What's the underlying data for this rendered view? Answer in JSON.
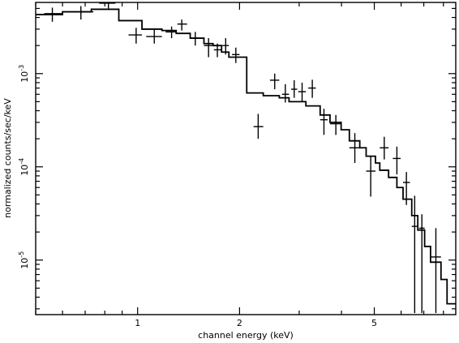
{
  "chart_data": {
    "type": "scatter",
    "title": "",
    "xlabel": "channel energy (keV)",
    "ylabel": "normalized counts/sec/keV",
    "x_scale": "log",
    "y_scale": "log",
    "xlim": [
      0.5,
      8.7
    ],
    "ylim": [
      2.6e-06,
      0.0058
    ],
    "grid": false,
    "legend": "none",
    "x_ticks": [
      {
        "value": 1,
        "label": "1"
      },
      {
        "value": 2,
        "label": "2"
      },
      {
        "value": 5,
        "label": "5"
      }
    ],
    "y_ticks": [
      {
        "value": 0.001,
        "base": "10",
        "exp": "-3"
      },
      {
        "value": 0.0001,
        "base": "10",
        "exp": "-4"
      },
      {
        "value": 1e-05,
        "base": "10",
        "exp": "-5"
      }
    ],
    "series": [
      {
        "kind": "data-with-errors",
        "points": [
          {
            "x": 0.56,
            "xerr": [
              0.53,
              0.6
            ],
            "y": 0.0044,
            "ylo": 0.0036,
            "yhi": 0.0051
          },
          {
            "x": 0.68,
            "xerr": [
              0.63,
              0.74
            ],
            "y": 0.0046,
            "ylo": 0.0038,
            "yhi": 0.0053
          },
          {
            "x": 0.82,
            "xerr": [
              0.77,
              0.86
            ],
            "y": 0.0057,
            "ylo": 0.005,
            "yhi": 0.0058
          },
          {
            "x": 0.99,
            "xerr": [
              0.94,
              1.03
            ],
            "y": 0.0026,
            "ylo": 0.0021,
            "yhi": 0.0031
          },
          {
            "x": 1.12,
            "xerr": [
              1.06,
              1.18
            ],
            "y": 0.0025,
            "ylo": 0.0021,
            "yhi": 0.003
          },
          {
            "x": 1.26,
            "xerr": [
              1.21,
              1.3
            ],
            "y": 0.0028,
            "ylo": 0.0024,
            "yhi": 0.0032
          },
          {
            "x": 1.35,
            "xerr": [
              1.31,
              1.4
            ],
            "y": 0.0034,
            "ylo": 0.0029,
            "yhi": 0.0038
          },
          {
            "x": 1.48,
            "xerr": [
              1.43,
              1.53
            ],
            "y": 0.0024,
            "ylo": 0.002,
            "yhi": 0.0028
          },
          {
            "x": 1.62,
            "xerr": [
              1.57,
              1.67
            ],
            "y": 0.002,
            "ylo": 0.0015,
            "yhi": 0.0024
          },
          {
            "x": 1.72,
            "xerr": [
              1.68,
              1.77
            ],
            "y": 0.0018,
            "ylo": 0.0015,
            "yhi": 0.0021
          },
          {
            "x": 1.82,
            "xerr": [
              1.78,
              1.86
            ],
            "y": 0.002,
            "ylo": 0.0016,
            "yhi": 0.0024
          },
          {
            "x": 1.95,
            "xerr": [
              1.9,
              2.0
            ],
            "y": 0.0016,
            "ylo": 0.0013,
            "yhi": 0.0019
          },
          {
            "x": 2.27,
            "xerr": [
              2.2,
              2.35
            ],
            "y": 0.00027,
            "ylo": 0.0002,
            "yhi": 0.00037
          },
          {
            "x": 2.54,
            "xerr": [
              2.46,
              2.62
            ],
            "y": 0.00085,
            "ylo": 0.00068,
            "yhi": 0.001
          },
          {
            "x": 2.73,
            "xerr": [
              2.67,
              2.8
            ],
            "y": 0.0006,
            "ylo": 0.00049,
            "yhi": 0.00077
          },
          {
            "x": 2.9,
            "xerr": [
              2.84,
              2.96
            ],
            "y": 0.00068,
            "ylo": 0.00055,
            "yhi": 0.00085
          },
          {
            "x": 3.06,
            "xerr": [
              2.98,
              3.14
            ],
            "y": 0.00064,
            "ylo": 0.0005,
            "yhi": 0.0008
          },
          {
            "x": 3.28,
            "xerr": [
              3.19,
              3.36
            ],
            "y": 0.0007,
            "ylo": 0.00055,
            "yhi": 0.00086
          },
          {
            "x": 3.55,
            "xerr": [
              3.46,
              3.64
            ],
            "y": 0.00032,
            "ylo": 0.00022,
            "yhi": 0.00042
          },
          {
            "x": 3.85,
            "xerr": [
              3.7,
              3.99
            ],
            "y": 0.00029,
            "ylo": 0.00022,
            "yhi": 0.00036
          },
          {
            "x": 4.38,
            "xerr": [
              4.22,
              4.53
            ],
            "y": 0.00016,
            "ylo": 0.00011,
            "yhi": 0.00023
          },
          {
            "x": 4.88,
            "xerr": [
              4.73,
              5.04
            ],
            "y": 9e-05,
            "ylo": 4.8e-05,
            "yhi": 0.00013
          },
          {
            "x": 5.35,
            "xerr": [
              5.19,
              5.51
            ],
            "y": 0.00016,
            "ylo": 0.00012,
            "yhi": 0.00021
          },
          {
            "x": 5.83,
            "xerr": [
              5.67,
              5.98
            ],
            "y": 0.000123,
            "ylo": 8.3e-05,
            "yhi": 0.000165
          },
          {
            "x": 6.22,
            "xerr": [
              6.08,
              6.37
            ],
            "y": 6.8e-05,
            "ylo": 3.9e-05,
            "yhi": 8.8e-05
          },
          {
            "x": 6.58,
            "xerr": [
              6.45,
              6.72
            ],
            "y": 2.3e-05,
            "ylo": 2.7e-06,
            "yhi": 4.9e-05
          },
          {
            "x": 6.91,
            "xerr": [
              6.78,
              7.04
            ],
            "y": 2.2e-05,
            "ylo": 2.7e-06,
            "yhi": 3.1e-05
          },
          {
            "x": 7.6,
            "xerr": [
              7.33,
              7.87
            ],
            "y": 1.08e-05,
            "ylo": 2.7e-06,
            "yhi": 2.2e-05
          }
        ]
      },
      {
        "kind": "model-step",
        "steps": [
          {
            "x0": 0.5,
            "x1": 0.6,
            "y": 0.0043
          },
          {
            "x0": 0.6,
            "x1": 0.73,
            "y": 0.0046
          },
          {
            "x0": 0.73,
            "x1": 0.88,
            "y": 0.0049
          },
          {
            "x0": 0.88,
            "x1": 1.03,
            "y": 0.0037
          },
          {
            "x0": 1.03,
            "x1": 1.18,
            "y": 0.003
          },
          {
            "x0": 1.18,
            "x1": 1.3,
            "y": 0.0029
          },
          {
            "x0": 1.3,
            "x1": 1.43,
            "y": 0.0027
          },
          {
            "x0": 1.43,
            "x1": 1.57,
            "y": 0.0024
          },
          {
            "x0": 1.57,
            "x1": 1.67,
            "y": 0.0021
          },
          {
            "x0": 1.67,
            "x1": 1.77,
            "y": 0.002
          },
          {
            "x0": 1.77,
            "x1": 1.86,
            "y": 0.0017
          },
          {
            "x0": 1.86,
            "x1": 2.1,
            "y": 0.0015
          },
          {
            "x0": 2.1,
            "x1": 2.35,
            "y": 0.00062
          },
          {
            "x0": 2.35,
            "x1": 2.62,
            "y": 0.00058
          },
          {
            "x0": 2.62,
            "x1": 2.8,
            "y": 0.00055
          },
          {
            "x0": 2.8,
            "x1": 3.14,
            "y": 0.0005
          },
          {
            "x0": 3.14,
            "x1": 3.46,
            "y": 0.00045
          },
          {
            "x0": 3.46,
            "x1": 3.7,
            "y": 0.00036
          },
          {
            "x0": 3.7,
            "x1": 3.99,
            "y": 0.0003
          },
          {
            "x0": 3.99,
            "x1": 4.22,
            "y": 0.00025
          },
          {
            "x0": 4.22,
            "x1": 4.53,
            "y": 0.00019
          },
          {
            "x0": 4.53,
            "x1": 4.73,
            "y": 0.00016
          },
          {
            "x0": 4.73,
            "x1": 5.04,
            "y": 0.00013
          },
          {
            "x0": 5.04,
            "x1": 5.19,
            "y": 0.00011
          },
          {
            "x0": 5.19,
            "x1": 5.51,
            "y": 9.2e-05
          },
          {
            "x0": 5.51,
            "x1": 5.83,
            "y": 7.7e-05
          },
          {
            "x0": 5.83,
            "x1": 6.08,
            "y": 6e-05
          },
          {
            "x0": 6.08,
            "x1": 6.45,
            "y": 4.5e-05
          },
          {
            "x0": 6.45,
            "x1": 6.72,
            "y": 3e-05
          },
          {
            "x0": 6.72,
            "x1": 7.04,
            "y": 2.1e-05
          },
          {
            "x0": 7.04,
            "x1": 7.33,
            "y": 1.4e-05
          },
          {
            "x0": 7.33,
            "x1": 7.87,
            "y": 9.5e-06
          },
          {
            "x0": 7.87,
            "x1": 8.2,
            "y": 6.2e-06
          },
          {
            "x0": 8.2,
            "x1": 8.7,
            "y": 3.4e-06
          }
        ]
      }
    ]
  }
}
